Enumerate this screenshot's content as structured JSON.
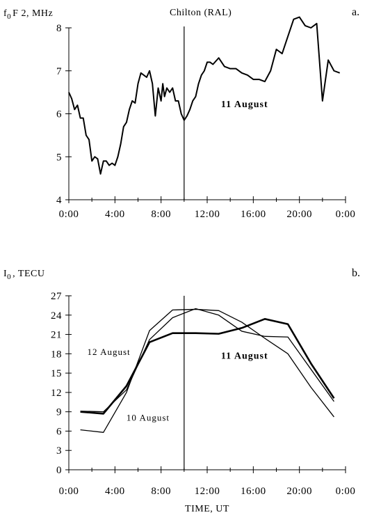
{
  "chart_data": [
    {
      "type": "line",
      "panel_letter": "a.",
      "ylabel_main": "f",
      "ylabel_sub": "0",
      "ylabel_rest": "F 2, MHz",
      "title": "Chilton (RAL)",
      "x_tick_labels": [
        "0:00",
        "4:00",
        "8:00",
        "12:00",
        "16:00",
        "20:00",
        "0:00"
      ],
      "xlim": [
        0,
        24
      ],
      "ylim": [
        4,
        8
      ],
      "y_ticks": [
        4,
        5,
        6,
        7,
        8
      ],
      "marker_x": 10,
      "annotations": [
        {
          "text": "11 August",
          "x": 13.2,
          "y": 6.15,
          "bold": true
        }
      ],
      "series": [
        {
          "line_width": 2,
          "x": [
            0.0,
            0.25,
            0.5,
            0.75,
            1.0,
            1.25,
            1.5,
            1.75,
            2.0,
            2.25,
            2.5,
            2.75,
            3.0,
            3.25,
            3.5,
            3.75,
            4.0,
            4.25,
            4.5,
            4.75,
            5.0,
            5.25,
            5.5,
            5.75,
            6.0,
            6.25,
            6.5,
            6.75,
            7.0,
            7.25,
            7.5,
            7.75,
            8.0,
            8.15,
            8.3,
            8.5,
            8.75,
            9.0,
            9.25,
            9.5,
            9.75,
            10.0,
            10.25,
            10.5,
            10.75,
            11.0,
            11.25,
            11.5,
            11.75,
            12.0,
            12.25,
            12.5,
            13.0,
            13.5,
            14.0,
            14.5,
            15.0,
            15.5,
            16.0,
            16.5,
            17.0,
            17.5,
            18.0,
            18.5,
            19.0,
            19.5,
            20.0,
            20.5,
            21.0,
            21.5,
            22.0,
            22.5,
            23.0,
            23.5
          ],
          "values": [
            6.5,
            6.35,
            6.1,
            6.2,
            5.9,
            5.9,
            5.5,
            5.4,
            4.9,
            5.0,
            4.95,
            4.6,
            4.9,
            4.9,
            4.8,
            4.85,
            4.8,
            5.0,
            5.3,
            5.7,
            5.8,
            6.1,
            6.3,
            6.25,
            6.7,
            6.95,
            6.9,
            6.85,
            7.0,
            6.7,
            5.95,
            6.6,
            6.3,
            6.7,
            6.4,
            6.6,
            6.5,
            6.6,
            6.3,
            6.3,
            6.0,
            5.85,
            5.95,
            6.1,
            6.3,
            6.4,
            6.7,
            6.9,
            7.0,
            7.2,
            7.2,
            7.15,
            7.3,
            7.1,
            7.05,
            7.05,
            6.95,
            6.9,
            6.8,
            6.8,
            6.75,
            7.0,
            7.5,
            7.4,
            7.8,
            8.2,
            8.25,
            8.05,
            8.0,
            8.1,
            6.3,
            7.25,
            7.0,
            6.95
          ]
        }
      ]
    },
    {
      "type": "line",
      "panel_letter": "b.",
      "ylabel_main": "I",
      "ylabel_sub": "0",
      "ylabel_rest": ", TECU",
      "xlabel": "TIME, UT",
      "x_tick_labels": [
        "0:00",
        "4:00",
        "8:00",
        "12:00",
        "16:00",
        "20:00",
        "0:00"
      ],
      "xlim": [
        0,
        24
      ],
      "ylim": [
        0,
        27
      ],
      "y_ticks": [
        0,
        3,
        6,
        9,
        12,
        15,
        18,
        21,
        24,
        27
      ],
      "marker_x": 10,
      "annotations": [
        {
          "text": "11 August",
          "x": 13.2,
          "y": 17.2,
          "bold": true
        },
        {
          "text": "12 August",
          "x": 1.6,
          "y": 17.8,
          "bold": false
        },
        {
          "text": "10 August",
          "x": 5.0,
          "y": 7.6,
          "bold": false
        }
      ],
      "series": [
        {
          "name": "11 August",
          "line_width": 2.6,
          "x": [
            1,
            3,
            5,
            7,
            9,
            11,
            13,
            15,
            17,
            19,
            21,
            23
          ],
          "values": [
            9.0,
            8.7,
            13.0,
            19.8,
            21.2,
            21.2,
            21.1,
            22.0,
            23.4,
            22.6,
            16.5,
            11.1
          ]
        },
        {
          "name": "12 August",
          "line_width": 1.3,
          "x": [
            1,
            3,
            5,
            7,
            9,
            11,
            13,
            15,
            17,
            19,
            21,
            23
          ],
          "values": [
            9.1,
            9.0,
            12.4,
            20.2,
            23.6,
            25.0,
            24.0,
            21.5,
            20.7,
            20.6,
            15.6,
            10.6
          ]
        },
        {
          "name": "10 August",
          "line_width": 1.3,
          "x": [
            1,
            3,
            5,
            7,
            9,
            11,
            13,
            15,
            17,
            19,
            21,
            23
          ],
          "values": [
            6.2,
            5.8,
            12.0,
            21.6,
            24.8,
            24.9,
            24.7,
            22.9,
            20.4,
            18.0,
            12.8,
            8.2
          ]
        }
      ]
    }
  ]
}
